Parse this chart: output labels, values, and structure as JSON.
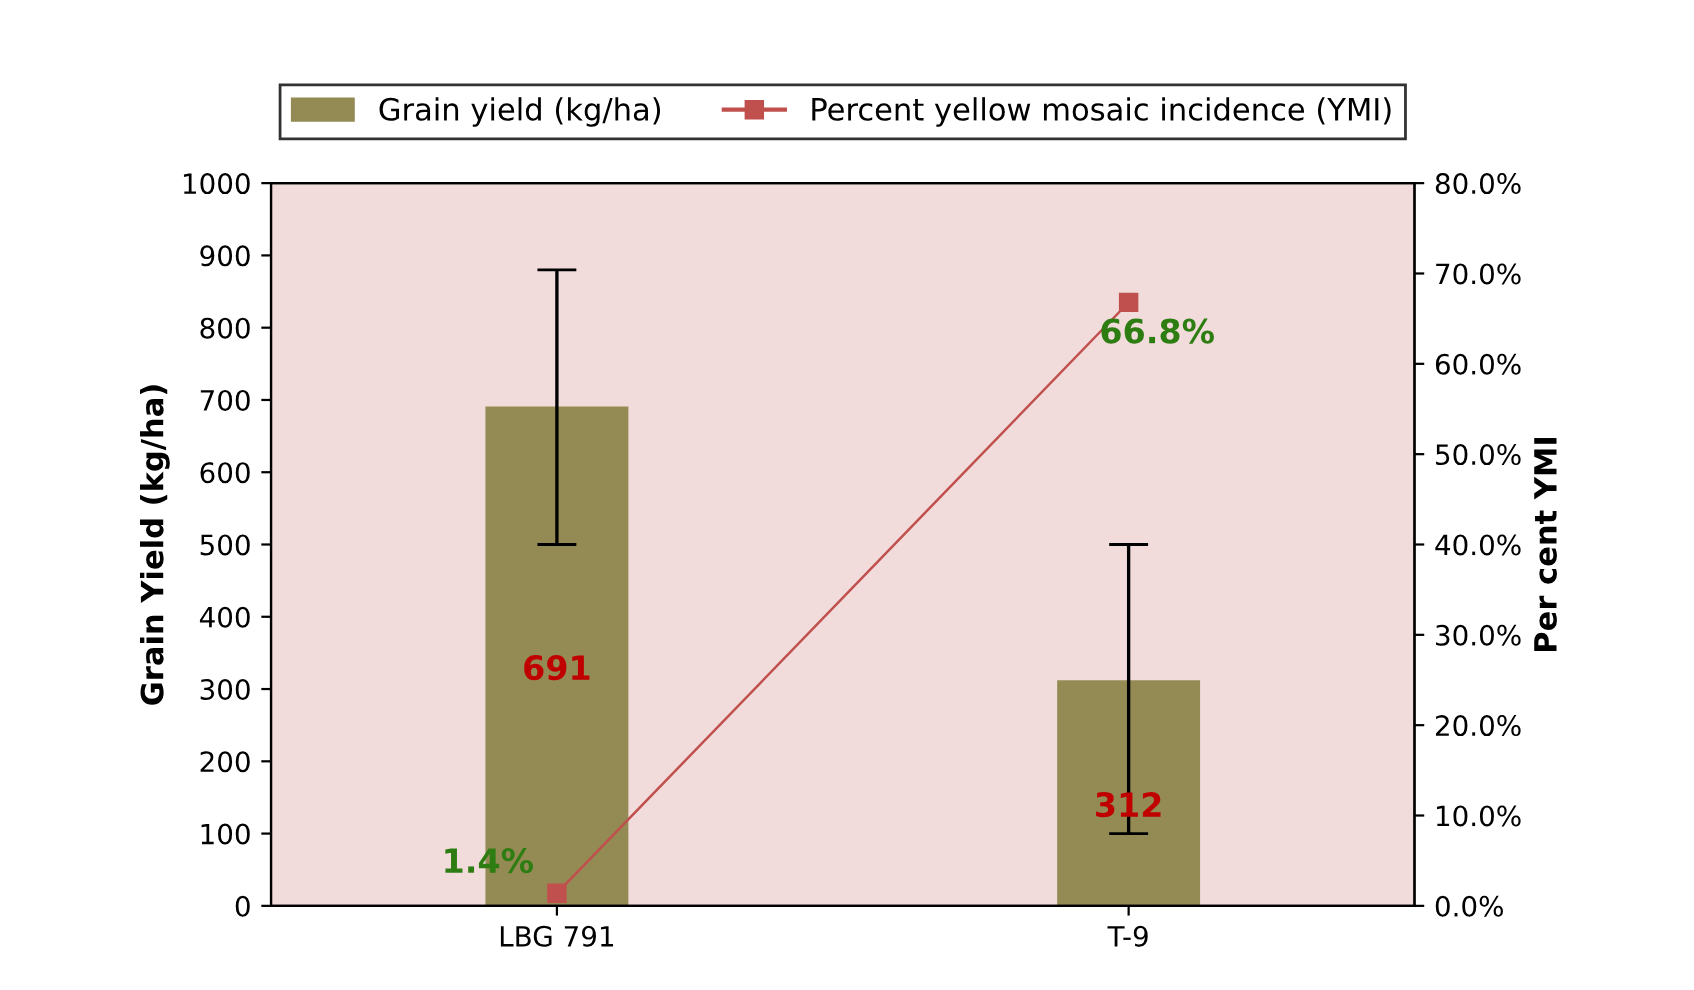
{
  "chart_data": {
    "type": "bar",
    "categories": [
      "LBG 791",
      "T-9"
    ],
    "ylabel": "Grain Yield (kg/ha)",
    "y2label": "Per cent YMI",
    "series": [
      {
        "name": "Grain yield (kg/ha)",
        "color": "#948a54",
        "values": [
          691,
          312
        ],
        "errors": [
          [
            500,
            880
          ],
          [
            100,
            500
          ]
        ],
        "value_labels": [
          "691",
          "312"
        ]
      },
      {
        "name": "Percent yellow mosaic incidence (YMI)",
        "type": "line",
        "axis": "y2",
        "color": "#c0504d",
        "values": [
          1.4,
          66.8
        ],
        "value_labels": [
          "1.4%",
          "66.8%"
        ]
      }
    ],
    "ylim": [
      0,
      1000
    ],
    "yticks": [
      0,
      100,
      200,
      300,
      400,
      500,
      600,
      700,
      800,
      900,
      1000
    ],
    "y2lim": [
      0,
      80
    ],
    "y2ticks": [
      {
        "value": 0,
        "label": "0.0%"
      },
      {
        "value": 10,
        "label": "10.0%"
      },
      {
        "value": 20,
        "label": "20.0%"
      },
      {
        "value": 30,
        "label": "30.0%"
      },
      {
        "value": 40,
        "label": "40.0%"
      },
      {
        "value": 50,
        "label": "50.0%"
      },
      {
        "value": 60,
        "label": "60.0%"
      },
      {
        "value": 70,
        "label": "70.0%"
      },
      {
        "value": 80,
        "label": "80.0%"
      }
    ],
    "marker": "square",
    "line_style": "solid",
    "legend": "top",
    "grid": false
  }
}
